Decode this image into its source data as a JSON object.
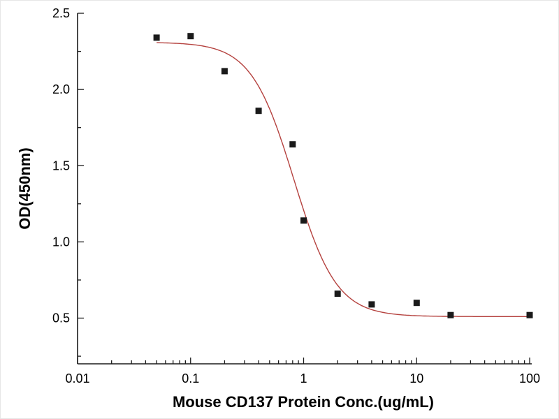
{
  "chart_data": {
    "type": "scatter",
    "title": "",
    "xlabel": "Mouse CD137 Protein Conc.(ug/mL)",
    "ylabel": "OD(450nm)",
    "x_scale": "log",
    "y_scale": "linear",
    "xlim": [
      0.01,
      100
    ],
    "ylim": [
      0.2,
      2.5
    ],
    "x_ticks": [
      0.01,
      0.1,
      1,
      10,
      100
    ],
    "x_tick_labels": [
      "0.01",
      "0.1",
      "1",
      "10",
      "100"
    ],
    "y_ticks": [
      0.5,
      1.0,
      1.5,
      2.0,
      2.5
    ],
    "y_tick_labels": [
      "0.5",
      "1.0",
      "1.5",
      "2.0",
      "2.5"
    ],
    "grid": false,
    "legend": false,
    "points": [
      [
        0.05,
        2.34
      ],
      [
        0.1,
        2.35
      ],
      [
        0.2,
        2.12
      ],
      [
        0.4,
        1.86
      ],
      [
        0.8,
        1.64
      ],
      [
        1.0,
        1.14
      ],
      [
        2.0,
        0.66
      ],
      [
        4.0,
        0.59
      ],
      [
        10.0,
        0.6
      ],
      [
        20.0,
        0.52
      ],
      [
        100.0,
        0.52
      ]
    ],
    "fit_curve": {
      "model": "4PL",
      "top": 2.31,
      "bottom": 0.51,
      "ec50": 0.82,
      "hill": 2.3,
      "x_start": 0.05,
      "x_end": 100
    },
    "colors": {
      "points": "#1a1a1a",
      "curve": "#b5423f",
      "axis": "#1a1a1a"
    }
  }
}
